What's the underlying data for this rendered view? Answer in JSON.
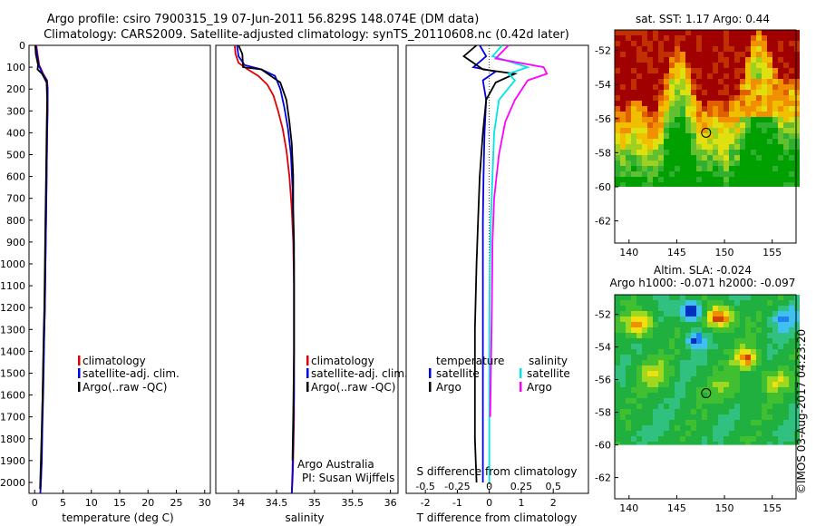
{
  "header": {
    "line1": "Argo profile: csiro 7900315_19 07-Jun-2011 56.829S 148.074E (DM data)",
    "line2": "Climatology: CARS2009. Satellite-adjusted climatology: synTS_20110608.nc (0.42d later)"
  },
  "footer": {
    "institute": "Argo Australia",
    "pi": "PI: Susan Wijffels",
    "stamp": "©IMOS 03-Aug-2017 04:23:20"
  },
  "colors": {
    "climatology": "#e00000",
    "satellite": "#0000e0",
    "argo": "#000000",
    "sal_satellite": "#00e5e5",
    "sal_argo": "#ff00ff"
  },
  "chart_data": [
    {
      "type": "line",
      "id": "temperature",
      "xlabel": "temperature (deg C)",
      "ylim": [
        0,
        2050
      ],
      "xlim": [
        -1,
        31
      ],
      "xticks": [
        0,
        5,
        10,
        15,
        20,
        25,
        30
      ],
      "yticks": [
        0,
        100,
        200,
        300,
        400,
        500,
        600,
        700,
        800,
        900,
        1000,
        1100,
        1200,
        1300,
        1400,
        1500,
        1600,
        1700,
        1800,
        1900,
        2000
      ],
      "legend": [
        "climatology",
        "satellite-adj. clim.",
        "Argo(..raw -QC)"
      ],
      "series": [
        {
          "name": "climatology",
          "x": [
            0.3,
            0.5,
            0.8,
            1.5,
            2.2,
            2.3,
            2.3,
            2.2,
            2.1,
            2.0,
            1.9,
            1.8,
            1.7,
            1.55,
            1.4,
            1.3,
            1.2,
            1.1,
            1.0
          ],
          "y": [
            0,
            40,
            90,
            130,
            160,
            200,
            300,
            400,
            600,
            800,
            1000,
            1200,
            1300,
            1450,
            1600,
            1750,
            1900,
            2000,
            2050
          ]
        },
        {
          "name": "satellite-adj. clim.",
          "x": [
            0.2,
            0.4,
            0.7,
            1.4,
            2.1,
            2.3,
            2.2,
            2.1,
            2.0,
            1.9,
            1.8,
            1.7,
            1.6,
            1.5,
            1.35,
            1.25,
            1.1,
            1.0
          ],
          "y": [
            0,
            40,
            90,
            130,
            160,
            200,
            400,
            600,
            800,
            1000,
            1200,
            1300,
            1450,
            1600,
            1750,
            1900,
            2000,
            2050
          ]
        },
        {
          "name": "Argo(..raw -QC)",
          "x": [
            0.1,
            0.2,
            0.6,
            0.5,
            1.3,
            2.1,
            2.2,
            2.1,
            2.0,
            1.9,
            1.8,
            1.7,
            1.6,
            1.5,
            1.4,
            1.25,
            1.1,
            0.95
          ],
          "y": [
            0,
            40,
            90,
            110,
            130,
            170,
            250,
            400,
            600,
            800,
            1000,
            1200,
            1300,
            1450,
            1600,
            1750,
            1900,
            2030
          ]
        }
      ]
    },
    {
      "type": "line",
      "id": "salinity",
      "xlabel": "salinity",
      "ylim": [
        0,
        2050
      ],
      "xlim": [
        33.7,
        36.1
      ],
      "xticks": [
        34,
        34.5,
        35,
        35.5,
        36
      ],
      "legend": [
        "climatology",
        "satellite-adj. clim.",
        "Argo(..raw -QC)"
      ],
      "series": [
        {
          "name": "climatology",
          "x": [
            33.95,
            33.96,
            34.0,
            34.12,
            34.26,
            34.38,
            34.46,
            34.52,
            34.58,
            34.63,
            34.67,
            34.7,
            34.72,
            34.73,
            34.73,
            34.73,
            34.73,
            34.72,
            34.71,
            34.7
          ],
          "y": [
            0,
            40,
            80,
            110,
            140,
            180,
            230,
            300,
            380,
            480,
            600,
            750,
            900,
            1100,
            1300,
            1500,
            1700,
            1900,
            2000,
            2050
          ]
        },
        {
          "name": "satellite-adj. clim.",
          "x": [
            33.98,
            34.0,
            34.08,
            34.3,
            34.48,
            34.55,
            34.6,
            34.65,
            34.69,
            34.71,
            34.72,
            34.73,
            34.73,
            34.73,
            34.72,
            34.71,
            34.7
          ],
          "y": [
            0,
            50,
            90,
            110,
            140,
            200,
            280,
            380,
            500,
            650,
            800,
            1000,
            1300,
            1600,
            1800,
            1950,
            2050
          ]
        },
        {
          "name": "Argo(..raw -QC)",
          "x": [
            34.0,
            34.05,
            34.06,
            34.3,
            34.55,
            34.63,
            34.67,
            34.7,
            34.72,
            34.72,
            34.73,
            34.73,
            34.73,
            34.72,
            34.71
          ],
          "y": [
            0,
            40,
            100,
            110,
            170,
            250,
            350,
            450,
            600,
            750,
            900,
            1100,
            1400,
            1700,
            1900
          ]
        }
      ]
    },
    {
      "type": "line",
      "id": "difference",
      "xlabel": "T difference from climatology",
      "xlabel2": "S difference from climatology",
      "ylim": [
        0,
        2050
      ],
      "xlim": [
        -2.6,
        3.1
      ],
      "xticks": [
        -2,
        -1,
        0,
        1,
        2
      ],
      "xticks2": [
        -0.5,
        -0.25,
        0,
        0.25,
        0.5
      ],
      "legend_temperature": {
        "title": "temperature",
        "items": [
          "satellite",
          "Argo"
        ]
      },
      "legend_salinity": {
        "title": "salinity",
        "items": [
          "satellite",
          "Argo"
        ]
      },
      "series": [
        {
          "name": "T satellite",
          "x": [
            -0.3,
            -0.1,
            -0.5,
            0.2,
            -0.2,
            -0.1,
            -0.15,
            -0.18,
            -0.2,
            -0.2,
            -0.2,
            -0.2,
            -0.2,
            -0.2
          ],
          "y": [
            0,
            50,
            100,
            120,
            160,
            250,
            400,
            600,
            800,
            1000,
            1300,
            1600,
            1900,
            2000
          ]
        },
        {
          "name": "T Argo",
          "x": [
            -0.4,
            -0.8,
            -0.2,
            0.8,
            0.2,
            -0.1,
            -0.2,
            -0.3,
            -0.35,
            -0.4,
            -0.45,
            -0.45,
            -0.45,
            -0.4
          ],
          "y": [
            0,
            50,
            110,
            130,
            170,
            250,
            400,
            600,
            800,
            1000,
            1300,
            1600,
            1800,
            2000
          ]
        },
        {
          "name": "S satellite",
          "x": [
            0.4,
            0.1,
            1.2,
            0.6,
            0.8,
            0.3,
            0.15,
            0.1,
            0.05,
            0.02,
            0.0,
            0.0,
            0.0,
            0.0
          ],
          "y": [
            0,
            50,
            100,
            130,
            160,
            250,
            400,
            600,
            800,
            1000,
            1300,
            1600,
            1900,
            2000
          ]
        },
        {
          "name": "S Argo",
          "x": [
            0.6,
            0.2,
            1.7,
            1.8,
            1.2,
            0.8,
            0.5,
            0.3,
            0.15,
            0.1,
            0.08,
            0.05,
            0.03
          ],
          "y": [
            0,
            60,
            100,
            130,
            160,
            250,
            350,
            500,
            700,
            900,
            1200,
            1500,
            1700
          ]
        }
      ]
    },
    {
      "type": "heatmap",
      "id": "sst-map",
      "title": "sat. SST: 1.17 Argo: 0.44",
      "xlim": [
        138.5,
        157.5
      ],
      "ylim": [
        -63.3,
        -50.8
      ],
      "xticks": [
        140,
        145,
        150,
        155
      ],
      "yticks": [
        -52,
        -54,
        -56,
        -58,
        -60,
        -62
      ],
      "marker": {
        "lon": 148.074,
        "lat": -56.829
      }
    },
    {
      "type": "heatmap",
      "id": "sla-map",
      "title": "Altim. SLA: -0.024",
      "subtitle": "Argo h1000: -0.071 h2000: -0.097",
      "xlim": [
        138.5,
        157.5
      ],
      "ylim": [
        -63.3,
        -50.8
      ],
      "xticks": [
        140,
        145,
        150,
        155
      ],
      "yticks": [
        -52,
        -54,
        -56,
        -58,
        -60,
        -62
      ],
      "marker": {
        "lon": 148.074,
        "lat": -56.829
      }
    }
  ]
}
